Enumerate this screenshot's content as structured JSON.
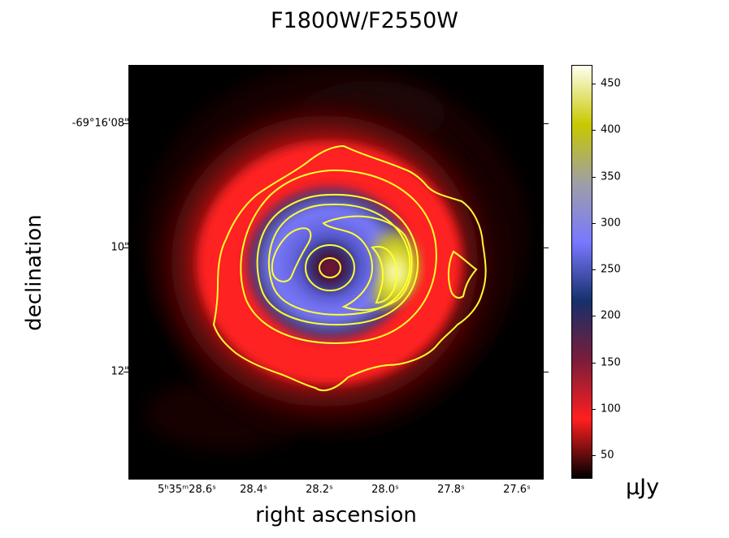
{
  "figure": {
    "title": "F1800W/F2550W",
    "xlabel": "right ascension",
    "ylabel": "declination",
    "unit": "μJy"
  },
  "axes": {
    "ra_ticks": [
      {
        "label": "5ʰ35ᵐ28.6ˢ"
      },
      {
        "label": "28.4ˢ"
      },
      {
        "label": "28.2ˢ"
      },
      {
        "label": "28.0ˢ"
      },
      {
        "label": "27.8ˢ"
      },
      {
        "label": "27.6ˢ"
      }
    ],
    "dec_ticks": [
      {
        "label": "-69°16'08\""
      },
      {
        "label": "10\""
      },
      {
        "label": "12\""
      }
    ]
  },
  "colorbar": {
    "min": 25,
    "max": 470,
    "ticks": [
      {
        "label": "450",
        "value": 450
      },
      {
        "label": "400",
        "value": 400
      },
      {
        "label": "350",
        "value": 350
      },
      {
        "label": "300",
        "value": 300
      },
      {
        "label": "250",
        "value": 250
      },
      {
        "label": "200",
        "value": 200
      },
      {
        "label": "150",
        "value": 150
      },
      {
        "label": "100",
        "value": 100
      },
      {
        "label": "50",
        "value": 50
      }
    ],
    "colormap": [
      "#000000",
      "#ff1f1f",
      "#7a1d3a",
      "#16306b",
      "#7878ff",
      "#9e9ea8",
      "#c8c800",
      "#fffff0"
    ]
  },
  "contour_color": "#ffff33"
}
